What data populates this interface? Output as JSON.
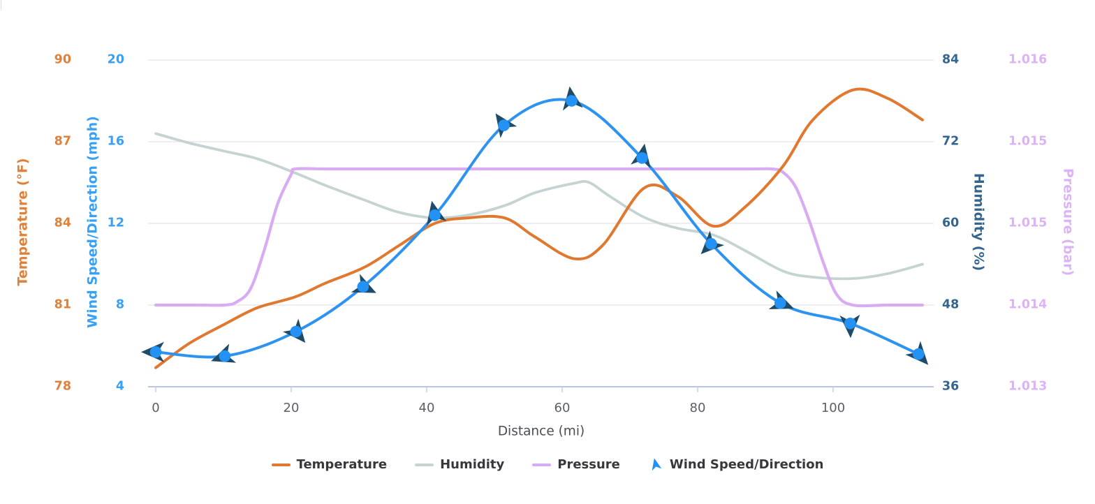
{
  "chart_data": {
    "type": "line",
    "xlabel": "Distance (mi)",
    "x_ticks": [
      0,
      20,
      40,
      60,
      80,
      100
    ],
    "x_range": [
      0,
      115
    ],
    "grid": true,
    "axes": {
      "temperature": {
        "title": "Temperature (°F)",
        "color": "#e0813a",
        "range": [
          78,
          90
        ],
        "ticks": [
          "90",
          "87",
          "84",
          "81",
          "78"
        ]
      },
      "wind": {
        "title": "Wind Speed/Direction (mph)",
        "color": "#38a0f5",
        "range": [
          4,
          20
        ],
        "ticks": [
          "20",
          "16",
          "12",
          "8",
          "4"
        ]
      },
      "humidity": {
        "title": "Humidity (%)",
        "color": "#33658f",
        "range": [
          36,
          84
        ],
        "ticks": [
          "84",
          "72",
          "60",
          "48",
          "36"
        ]
      },
      "pressure": {
        "title": "Pressure (bar)",
        "color": "#dbb3f6",
        "range": [
          1.013,
          1.016
        ],
        "ticks": [
          "1.016",
          "1.015",
          "1.015",
          "1.014",
          "1.013"
        ]
      }
    },
    "series": [
      {
        "name": "Humidity",
        "axis": "humidity",
        "color": "#c5d4d3",
        "width": 3.8,
        "x": [
          0,
          5,
          10.2,
          15,
          20.6,
          25,
          30.9,
          36,
          41.2,
          46,
          51.5,
          56,
          61.8,
          64,
          67,
          72.1,
          77,
          82.3,
          87,
          92.6,
          97,
          102.9,
          108,
          113.2
        ],
        "values": [
          73.2,
          71.8,
          70.6,
          69.5,
          67.4,
          65.6,
          63.4,
          61.6,
          60.8,
          61.2,
          62.6,
          64.5,
          65.9,
          66.0,
          64.0,
          60.9,
          59.3,
          58.3,
          56.0,
          53.0,
          52.1,
          51.9,
          52.6,
          54.0
        ]
      },
      {
        "name": "Pressure",
        "axis": "pressure",
        "color": "#d9abf2",
        "width": 4.2,
        "x": [
          0,
          6,
          10.2,
          12,
          14,
          16,
          18,
          20,
          20.6,
          25,
          30.9,
          41.2,
          51.5,
          61.8,
          72.1,
          82.3,
          88,
          91,
          92.6,
          94.5,
          96.5,
          98.5,
          100.5,
          102.9,
          108,
          113.2
        ],
        "values": [
          1.01375,
          1.01375,
          1.01375,
          1.01378,
          1.0139,
          1.01425,
          1.01468,
          1.01495,
          1.015,
          1.015,
          1.015,
          1.015,
          1.015,
          1.015,
          1.015,
          1.015,
          1.015,
          1.015,
          1.01497,
          1.01483,
          1.01452,
          1.01415,
          1.01385,
          1.01375,
          1.01375,
          1.01375
        ]
      },
      {
        "name": "Temperature",
        "axis": "temperature",
        "color": "#e0792f",
        "width": 4,
        "x": [
          0,
          5,
          10.2,
          15,
          20.6,
          25,
          30.9,
          36,
          41.2,
          46,
          51.5,
          56,
          61.8,
          66,
          72.1,
          77,
          82.3,
          87,
          92.6,
          97,
          102.9,
          108,
          113.2
        ],
        "values": [
          78.7,
          79.6,
          80.3,
          80.9,
          81.3,
          81.8,
          82.4,
          83.2,
          84.0,
          84.2,
          84.2,
          83.5,
          82.7,
          83.2,
          85.3,
          85.0,
          83.9,
          84.6,
          86.1,
          87.8,
          88.9,
          88.6,
          87.8
        ]
      },
      {
        "name": "Wind Speed/Direction",
        "axis": "wind",
        "color": "#2e93f0",
        "width": 4,
        "x": [
          0,
          10.2,
          20.7,
          30.6,
          41.2,
          51.4,
          61.4,
          71.8,
          82.0,
          92.2,
          102.5,
          112.6
        ],
        "values": [
          5.7,
          5.5,
          6.7,
          8.9,
          12.4,
          16.8,
          18.0,
          15.2,
          11.0,
          8.1,
          7.1,
          5.6
        ],
        "angles": [
          270,
          250,
          140,
          115,
          348,
          325,
          352,
          10,
          225,
          112,
          178,
          138
        ],
        "marker": {
          "shape": "arrow",
          "circle_color": "#2492f5",
          "arrow_color": "#1e4b68"
        }
      }
    ],
    "legend": [
      {
        "label": "Temperature",
        "color": "#e0792f",
        "icon": "dash"
      },
      {
        "label": "Humidity",
        "color": "#c5d4d3",
        "icon": "dash"
      },
      {
        "label": "Pressure",
        "color": "#d9abf2",
        "icon": "dash"
      },
      {
        "label": "Wind Speed/Direction",
        "color": "#2492f5",
        "icon": "arrow"
      }
    ]
  }
}
